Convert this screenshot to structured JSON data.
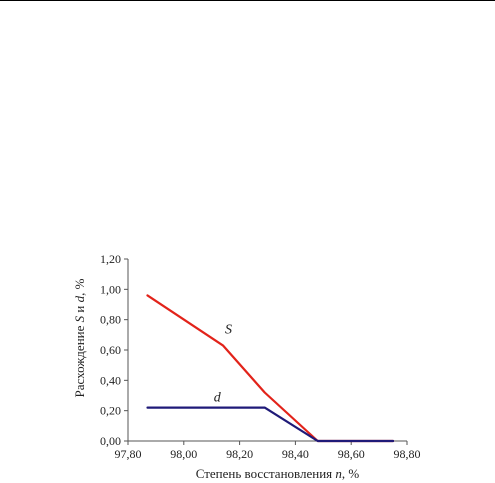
{
  "chart_data": {
    "type": "line",
    "title": "",
    "xlabel_prefix": "Степень восстановления ",
    "xlabel_var": "n",
    "xlabel_suffix": ", %",
    "ylabel_prefix": "Расхождение ",
    "ylabel_var1": "S",
    "ylabel_mid": " и ",
    "ylabel_var2": "d",
    "ylabel_suffix": ", %",
    "xlim": [
      97.8,
      98.8
    ],
    "ylim": [
      0.0,
      1.2
    ],
    "x_ticks": [
      97.8,
      98.0,
      98.2,
      98.4,
      98.6,
      98.8
    ],
    "x_tick_labels": [
      "97,80",
      "98,00",
      "98,20",
      "98,40",
      "98,60",
      "98,80"
    ],
    "y_ticks": [
      0.0,
      0.2,
      0.4,
      0.6,
      0.8,
      1.0,
      1.2
    ],
    "y_tick_labels": [
      "0,00",
      "0,20",
      "0,40",
      "0,60",
      "0,80",
      "1,00",
      "1,20"
    ],
    "grid": false,
    "series": [
      {
        "name": "S",
        "color": "#e2231a",
        "points": [
          [
            97.87,
            0.96
          ],
          [
            98.14,
            0.63
          ],
          [
            98.29,
            0.32
          ],
          [
            98.48,
            0.0
          ],
          [
            98.75,
            0.0
          ]
        ]
      },
      {
        "name": "d",
        "color": "#1f1a78",
        "points": [
          [
            97.87,
            0.22
          ],
          [
            98.29,
            0.22
          ],
          [
            98.48,
            0.0
          ],
          [
            98.75,
            0.0
          ]
        ]
      }
    ],
    "series_label_anchor": {
      "S": [
        98.16,
        0.71
      ],
      "d": [
        98.12,
        0.26
      ]
    }
  }
}
